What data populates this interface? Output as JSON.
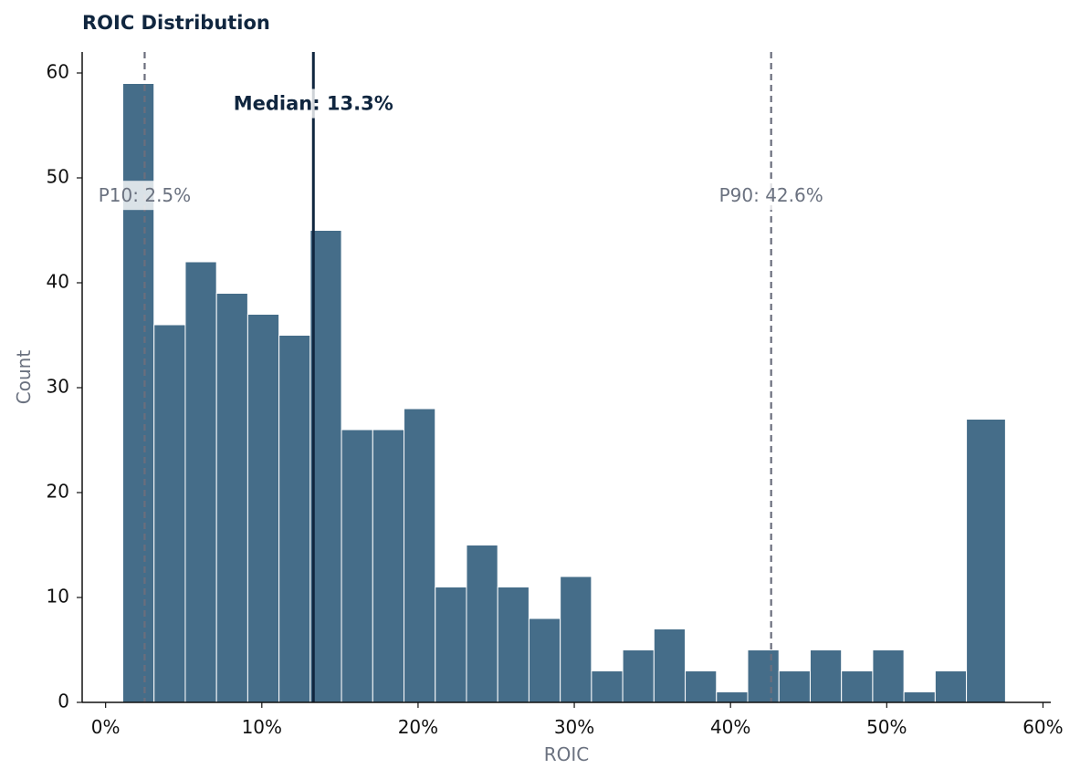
{
  "chart_data": {
    "type": "bar",
    "title": "ROIC Distribution",
    "xlabel": "ROIC",
    "ylabel": "Count",
    "xlim": [
      -1.5,
      60.5
    ],
    "ylim": [
      0,
      62
    ],
    "x_ticks": [
      0,
      10,
      20,
      30,
      40,
      50,
      60
    ],
    "x_tick_labels": [
      "0%",
      "10%",
      "20%",
      "30%",
      "40%",
      "50%",
      "60%"
    ],
    "y_ticks": [
      0,
      10,
      20,
      30,
      40,
      50,
      60
    ],
    "y_tick_labels": [
      "0",
      "10",
      "20",
      "30",
      "40",
      "50",
      "60"
    ],
    "bins": [
      [
        1.1,
        3.1
      ],
      [
        3.1,
        5.1
      ],
      [
        5.1,
        7.1
      ],
      [
        7.1,
        9.1
      ],
      [
        9.1,
        11.1
      ],
      [
        11.1,
        13.1
      ],
      [
        13.1,
        15.1
      ],
      [
        15.1,
        17.1
      ],
      [
        17.1,
        19.1
      ],
      [
        19.1,
        21.1
      ],
      [
        21.1,
        23.1
      ],
      [
        23.1,
        25.1
      ],
      [
        25.1,
        27.1
      ],
      [
        27.1,
        29.1
      ],
      [
        29.1,
        31.1
      ],
      [
        31.1,
        33.1
      ],
      [
        33.1,
        35.1
      ],
      [
        35.1,
        37.1
      ],
      [
        37.1,
        39.1
      ],
      [
        39.1,
        41.1
      ],
      [
        41.1,
        43.1
      ],
      [
        43.1,
        45.1
      ],
      [
        45.1,
        47.1
      ],
      [
        47.1,
        49.1
      ],
      [
        49.1,
        51.1
      ],
      [
        51.1,
        53.1
      ],
      [
        53.1,
        55.1
      ],
      [
        55.1,
        57.6
      ]
    ],
    "values": [
      59,
      36,
      42,
      39,
      37,
      35,
      45,
      26,
      26,
      28,
      11,
      15,
      11,
      8,
      12,
      3,
      5,
      7,
      3,
      1,
      5,
      3,
      5,
      3,
      5,
      1,
      3,
      27
    ],
    "bar_color": "#456d89",
    "grid": false,
    "reference_lines": [
      {
        "kind": "median",
        "value": 13.3,
        "label": "Median: 13.3%",
        "label_y": 57,
        "color": "#10263f",
        "style": "solid"
      },
      {
        "kind": "p10",
        "value": 2.5,
        "label": "P10: 2.5%",
        "label_y": 48.2,
        "color": "#6b6e7d",
        "style": "dashed"
      },
      {
        "kind": "p90",
        "value": 42.6,
        "label": "P90: 42.6%",
        "label_y": 48.2,
        "color": "#6b6e7d",
        "style": "dashed"
      }
    ]
  }
}
